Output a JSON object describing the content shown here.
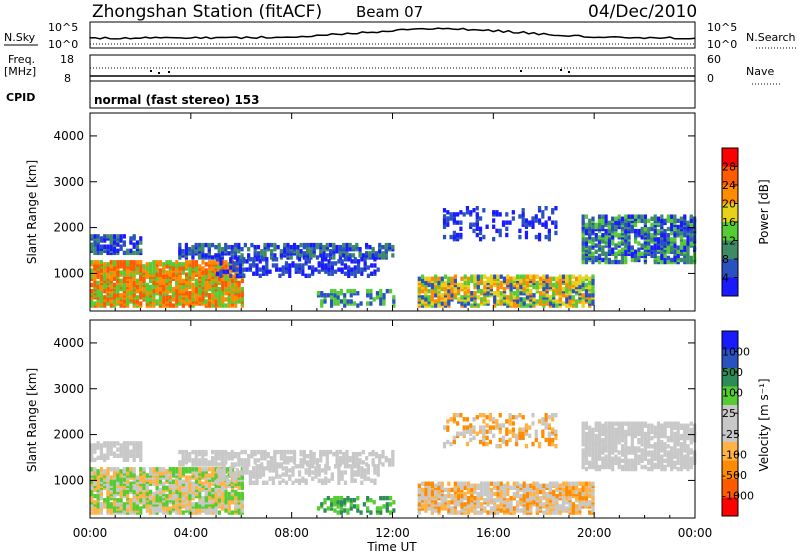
{
  "header": {
    "station": "Zhongshan Station (fitACF)",
    "beam": "Beam 07",
    "date": "04/Dec/2010"
  },
  "noise_panel": {
    "left_label": "N.Sky",
    "right_label": "N.Search",
    "left_ticks": [
      "10^5",
      "10^0"
    ],
    "right_ticks": [
      "10^5",
      "10^0"
    ]
  },
  "freq_panel": {
    "left_label_1": "Freq.",
    "left_label_2": "[MHz]",
    "right_label": "Nave",
    "left_ticks": [
      "18",
      "8"
    ],
    "right_ticks": [
      "60",
      "0"
    ]
  },
  "cpid": {
    "label": "CPID",
    "text": "normal (fast stereo) 153"
  },
  "colors": {
    "power_scale": [
      "#1a1aff",
      "#2a52be",
      "#3d8b63",
      "#55cc33",
      "#e6d21a",
      "#ff8c00",
      "#ff5a00",
      "#ff0000"
    ],
    "velocity_scale": [
      "#ff0000",
      "#ff5a00",
      "#ff8c00",
      "#ffb347",
      "#c8c8c8",
      "#c8c8c8",
      "#55cc33",
      "#2e8b57",
      "#2a52be",
      "#1a1aff"
    ]
  },
  "chart_data": [
    {
      "type": "heatmap",
      "title": "",
      "xlabel": "Time UT",
      "ylabel": "Slant Range [km]",
      "x_tick_labels": [
        "00:00",
        "04:00",
        "08:00",
        "12:00",
        "16:00",
        "20:00",
        "00:00"
      ],
      "xlim": [
        0,
        24
      ],
      "ylim": [
        180,
        4500
      ],
      "y_tick_values": [
        1000,
        2000,
        3000,
        4000
      ],
      "y_tick_labels": [
        "1000",
        "2000",
        "3000",
        "4000"
      ],
      "colorbar_label": "Power [dB]",
      "colorbar_ticks": [
        "4",
        "8",
        "12",
        "16",
        "20",
        "24",
        "28"
      ],
      "colorbar_range": [
        0,
        30
      ]
    },
    {
      "type": "heatmap",
      "title": "",
      "xlabel": "Time UT",
      "ylabel": "Slant Range [km]",
      "x_tick_labels": [
        "00:00",
        "04:00",
        "08:00",
        "12:00",
        "16:00",
        "20:00",
        "00:00"
      ],
      "xlim": [
        0,
        24
      ],
      "ylim": [
        180,
        4500
      ],
      "y_tick_values": [
        1000,
        2000,
        3000,
        4000
      ],
      "y_tick_labels": [
        "1000",
        "2000",
        "3000",
        "4000"
      ],
      "colorbar_label": "Velocity [m s⁻¹]",
      "colorbar_ticks": [
        "1000",
        "500",
        "100",
        "25",
        "-25",
        "-100",
        "-500",
        "-1000"
      ]
    }
  ]
}
